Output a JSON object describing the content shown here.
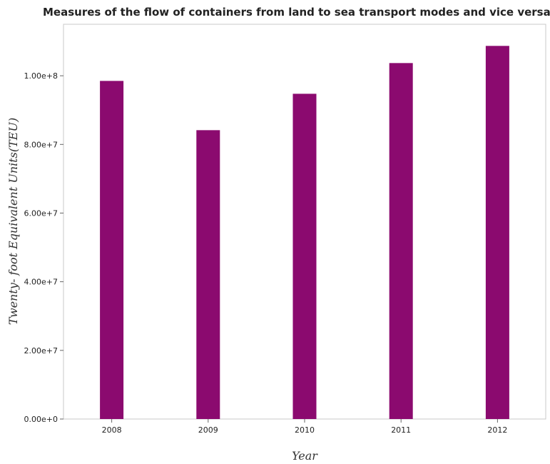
{
  "chart_data": {
    "type": "bar",
    "title": "Measures of the flow of containers from land to sea transport modes and vice versa in Europe(all income levels)",
    "xlabel": "Year",
    "ylabel": "Twenty- foot Equivalent Units(TEU)",
    "categories": [
      "2008",
      "2009",
      "2010",
      "2011",
      "2012"
    ],
    "values": [
      98500000,
      84150000,
      94750000,
      103700000,
      108700000
    ],
    "ylim": [
      0,
      115000000
    ],
    "yticks": [
      0,
      20000000,
      40000000,
      60000000,
      80000000,
      100000000
    ],
    "ytick_labels": [
      "0.00e+0",
      "2.00e+7",
      "4.00e+7",
      "6.00e+7",
      "8.00e+7",
      "1.00e+8"
    ],
    "bar_color": "#8b0a6f",
    "grid": false,
    "legend": "none"
  }
}
